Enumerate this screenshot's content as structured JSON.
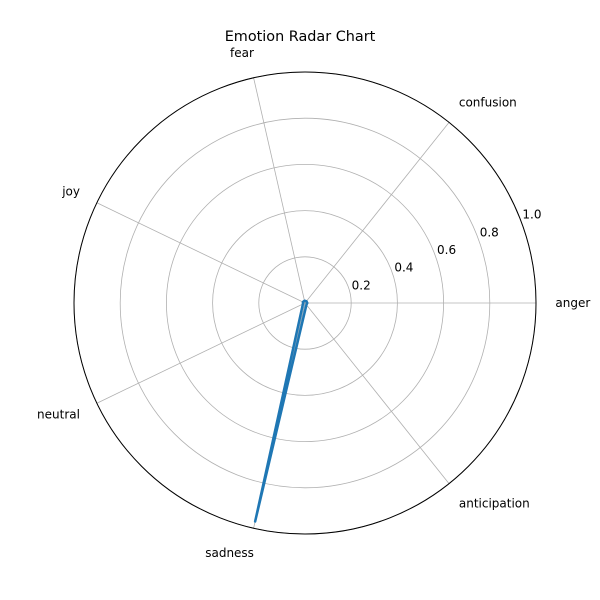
{
  "chart_data": {
    "type": "radar",
    "title": "Emotion Radar Chart",
    "categories": [
      "anger",
      "confusion",
      "fear",
      "joy",
      "neutral",
      "sadness",
      "anticipation"
    ],
    "series": [
      {
        "values": [
          0.01,
          0.01,
          0.01,
          0.01,
          0.01,
          0.97,
          0.01
        ],
        "color": "#1f77b4"
      }
    ],
    "rlim": [
      0,
      1.0
    ],
    "r_ticks": [
      0.2,
      0.4,
      0.6,
      0.8,
      1.0
    ],
    "r_tick_labels": [
      "0.2",
      "0.4",
      "0.6",
      "0.8",
      "1.0"
    ],
    "grid": true,
    "grid_color": "#b0b0b0",
    "spine_color": "#000000"
  }
}
